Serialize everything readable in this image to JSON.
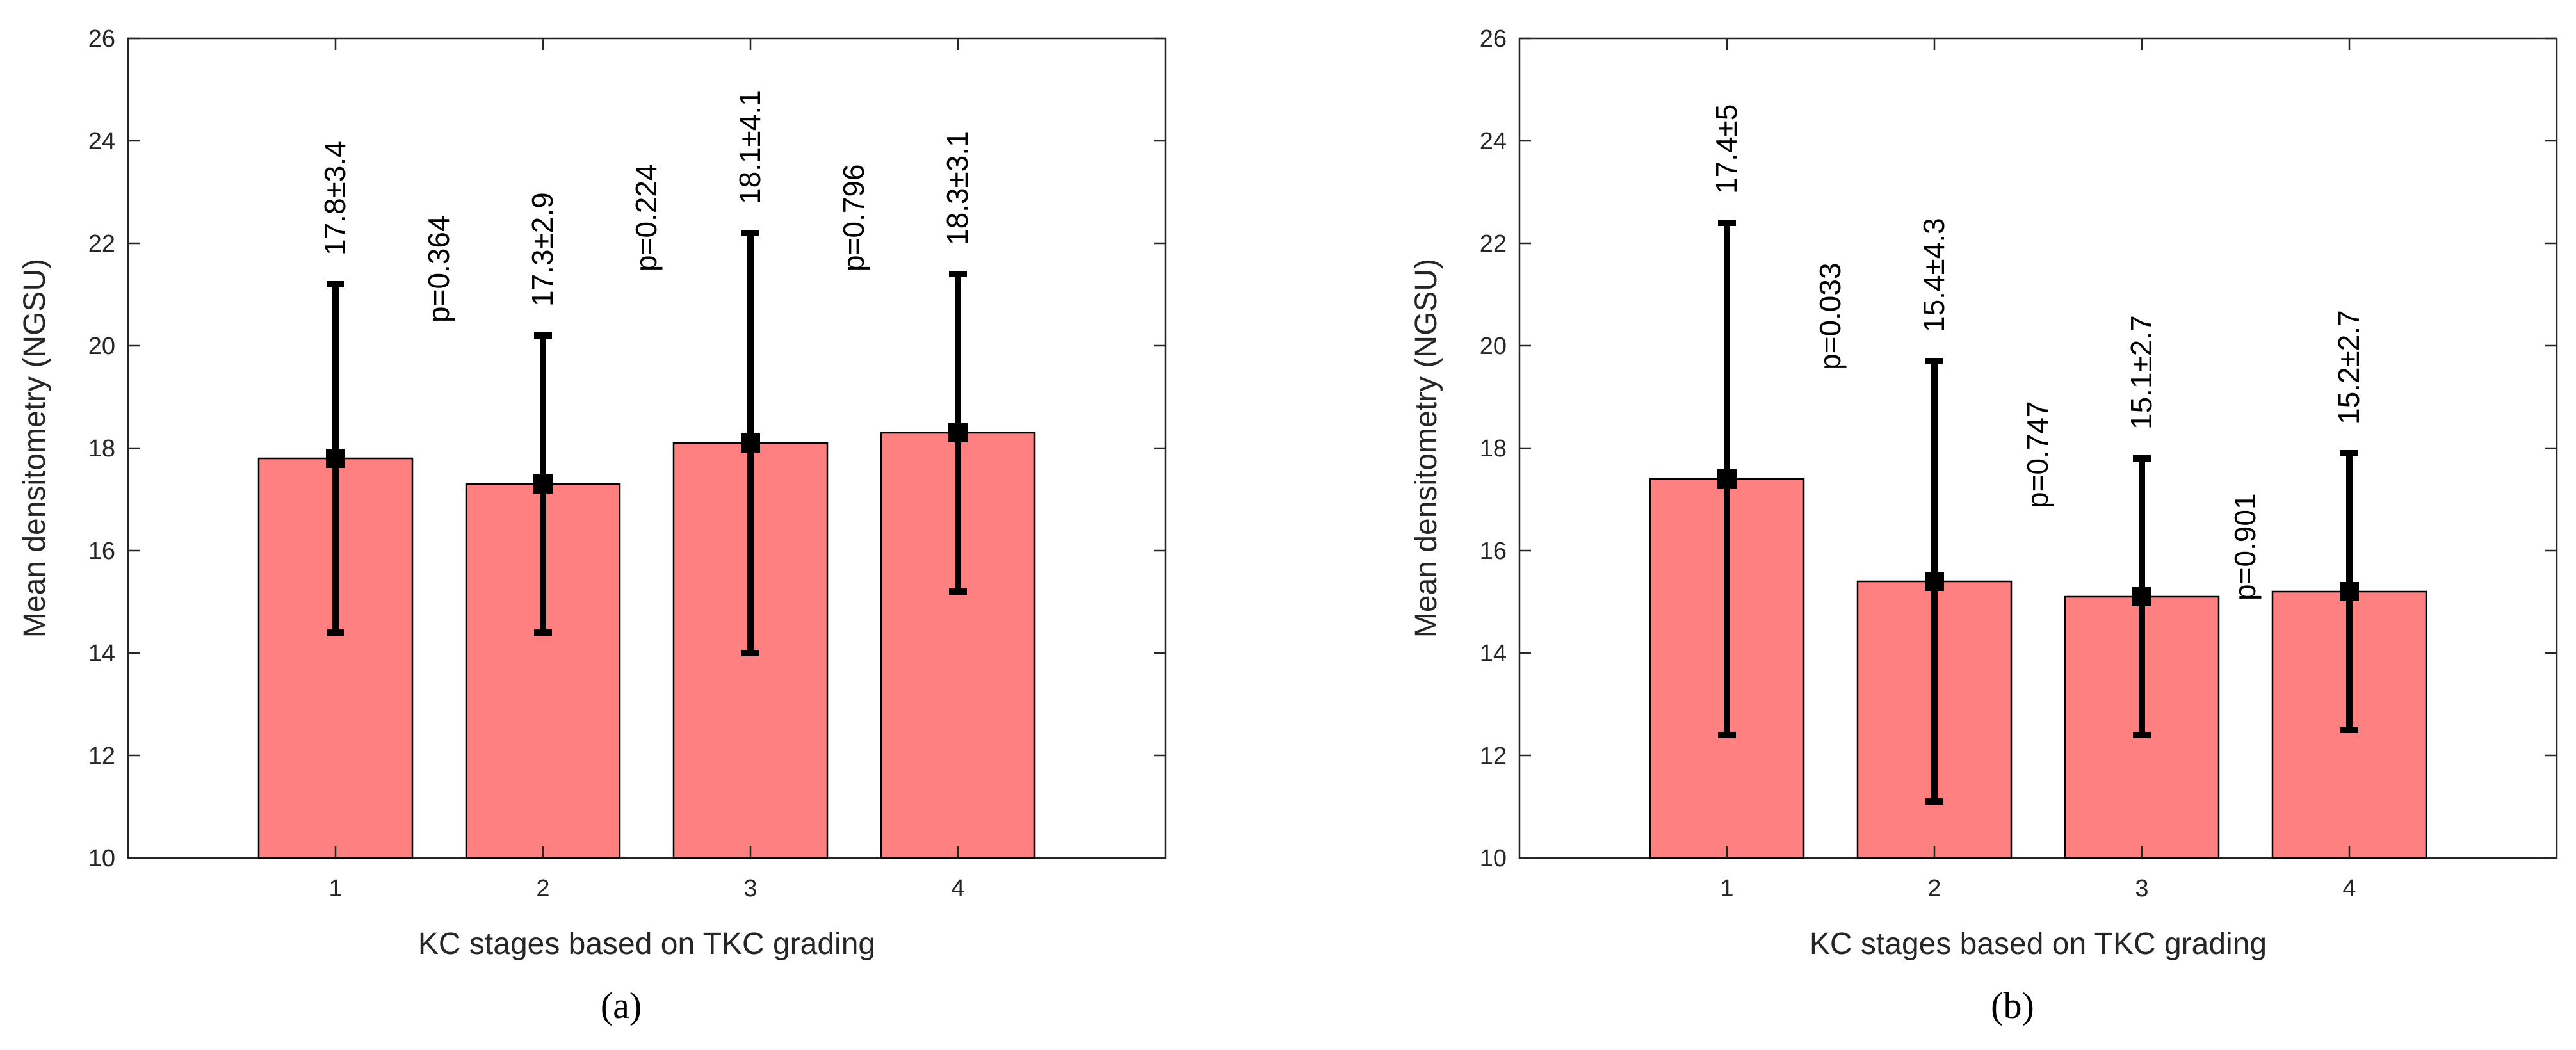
{
  "chart_data": [
    {
      "type": "bar",
      "panel_label": "(a)",
      "panel_letter": "a",
      "xlabel": "KC stages based on TKC grading",
      "ylabel": "Mean densitometry (NGSU)",
      "categories": [
        "1",
        "2",
        "3",
        "4"
      ],
      "values": [
        17.8,
        17.3,
        18.1,
        18.3
      ],
      "errors": [
        3.4,
        2.9,
        4.1,
        3.1
      ],
      "value_labels": [
        "17.8±3.4",
        "17.3±2.9",
        "18.1±4.1",
        "18.3±3.1"
      ],
      "p_values": [
        "p=0.364",
        "p=0.224",
        "p=0.796"
      ],
      "ylim": [
        10,
        26
      ],
      "yticks": [
        10,
        12,
        14,
        16,
        18,
        20,
        22,
        24,
        26
      ],
      "xlim": [
        0,
        5
      ],
      "bar_color": "#ff8080",
      "grid": false
    },
    {
      "type": "bar",
      "panel_label": "(b)",
      "panel_letter": "b",
      "xlabel": "KC stages based on TKC grading",
      "ylabel": "Mean densitometry (NGSU)",
      "categories": [
        "1",
        "2",
        "3",
        "4"
      ],
      "values": [
        17.4,
        15.4,
        15.1,
        15.2
      ],
      "errors": [
        5.0,
        4.3,
        2.7,
        2.7
      ],
      "value_labels": [
        "17.4±5",
        "15.4±4.3",
        "15.1±2.7",
        "15.2±2.7"
      ],
      "p_values": [
        "p=0.033",
        "p=0.747",
        "p=0.901"
      ],
      "ylim": [
        10,
        26
      ],
      "yticks": [
        10,
        12,
        14,
        16,
        18,
        20,
        22,
        24,
        26
      ],
      "xlim": [
        0,
        5
      ],
      "bar_color": "#ff8080",
      "grid": false
    }
  ]
}
